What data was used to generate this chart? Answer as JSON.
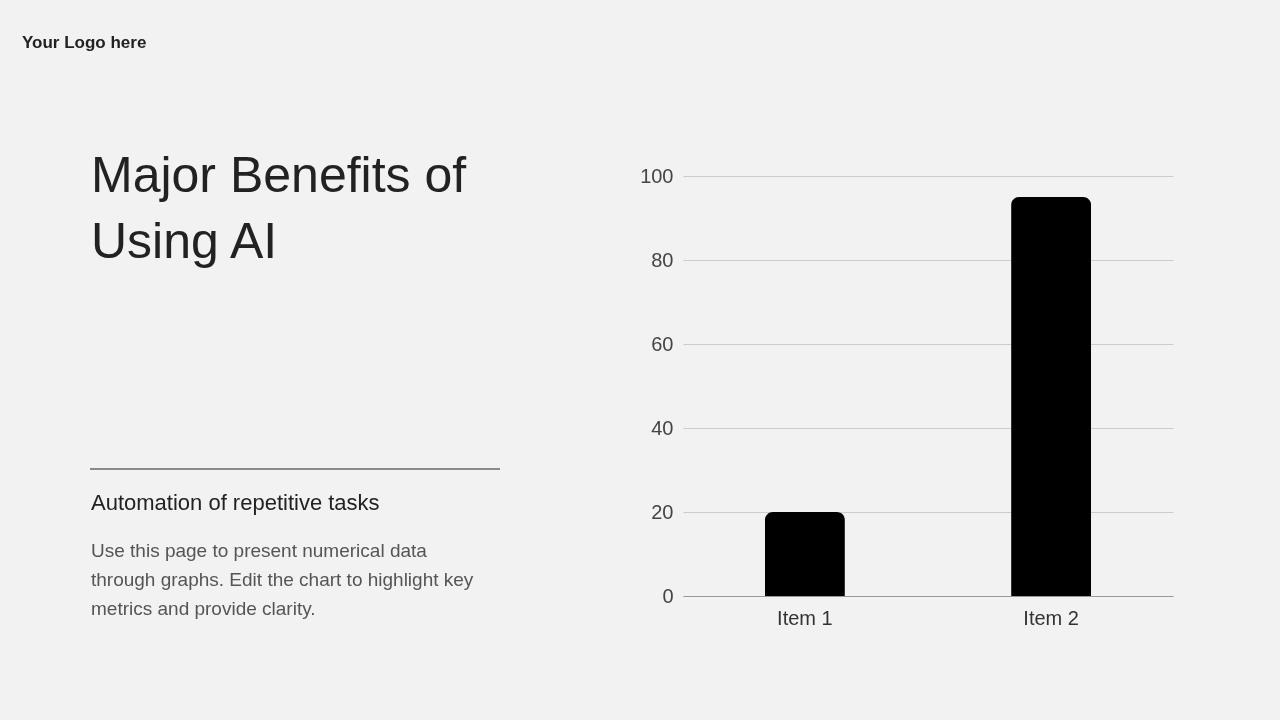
{
  "chart_data": {
    "type": "bar",
    "title": "Major Benefits of Using AI",
    "subtitle": "Automation of repetitive tasks",
    "annotations": [
      "Your Logo here",
      "Use this page to present numerical data",
      "through graphs. Edit the chart to highlight key",
      "metrics and provide clarity."
    ],
    "categories": [
      "Item 1",
      "Item 2"
    ],
    "values": [
      20,
      95
    ],
    "color": "#000000",
    "ylim": [
      0,
      100
    ],
    "yticks": [
      0,
      20,
      40,
      60,
      80,
      100
    ],
    "grid": "y"
  }
}
